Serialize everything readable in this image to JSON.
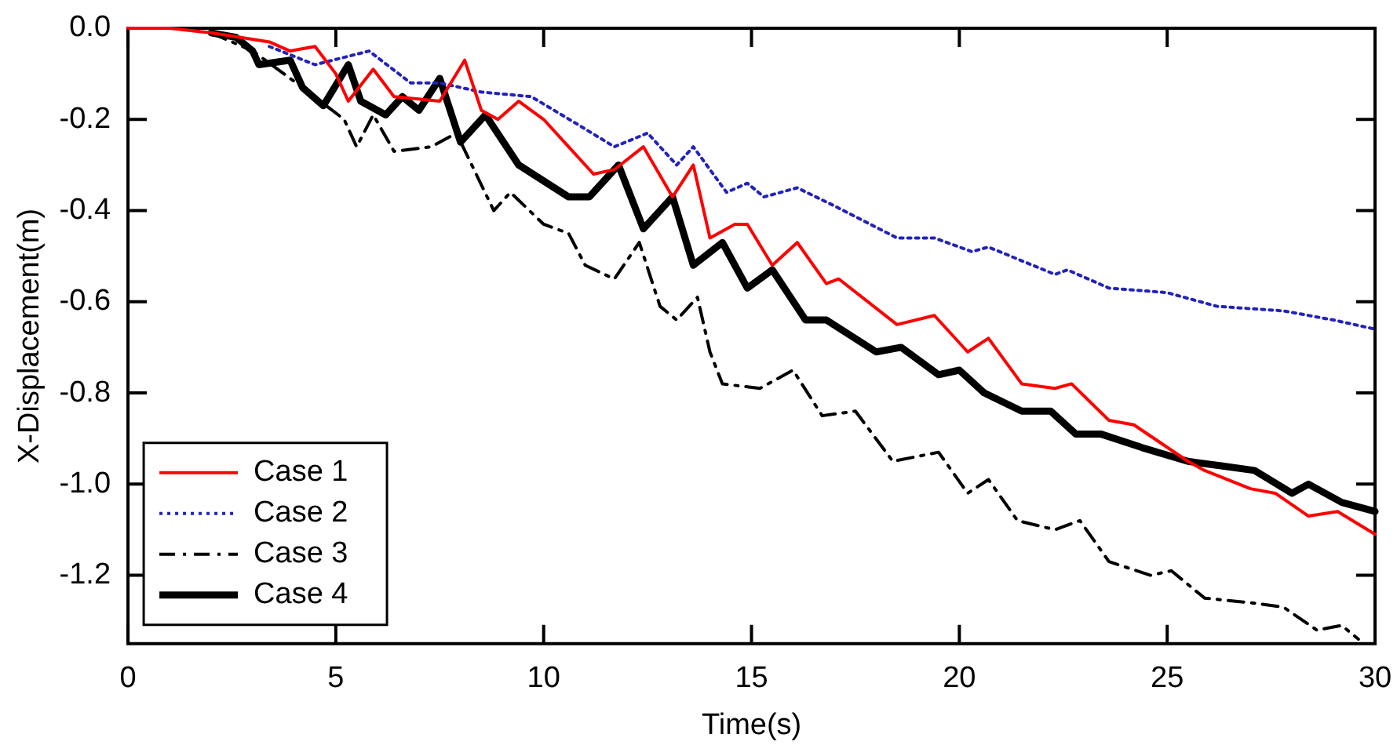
{
  "chart_data": {
    "type": "line",
    "xlabel": "Time(s)",
    "ylabel": "X-Displacement(m)",
    "xlim": [
      0,
      30
    ],
    "xticks": [
      0,
      5,
      10,
      15,
      20,
      25,
      30
    ],
    "ylim": [
      -1.35,
      0
    ],
    "yticks": [
      {
        "value": 0,
        "label": "0.0"
      },
      {
        "value": -0.2,
        "label": "-0.2"
      },
      {
        "value": -0.4,
        "label": "-0.4"
      },
      {
        "value": -0.6,
        "label": "-0.6"
      },
      {
        "value": -0.8,
        "label": "-0.8"
      },
      {
        "value": -1.0,
        "label": "-1.0"
      },
      {
        "value": -1.2,
        "label": "-1.2"
      }
    ],
    "grid": false,
    "legend": "bottom left",
    "marker": "none",
    "series": [
      {
        "name": "Case 1",
        "color": "#ff0000",
        "line_style": "solid",
        "x": [
          0,
          1,
          2,
          3.4,
          3.9,
          4.5,
          5.0,
          5.3,
          5.9,
          6.4,
          7.5,
          8.1,
          8.5,
          8.9,
          9.4,
          10.0,
          10.5,
          11.2,
          11.7,
          12.4,
          13.1,
          13.6,
          14.0,
          14.6,
          14.9,
          15.5,
          16.1,
          16.8,
          17.1,
          18.5,
          19.4,
          20.2,
          20.7,
          21.5,
          22.3,
          22.7,
          23.6,
          24.2,
          25.5,
          25.9,
          27.0,
          27.6,
          28.4,
          29.1,
          30
        ],
        "values": [
          0,
          0,
          -0.01,
          -0.03,
          -0.05,
          -0.04,
          -0.1,
          -0.16,
          -0.09,
          -0.15,
          -0.16,
          -0.07,
          -0.18,
          -0.2,
          -0.16,
          -0.2,
          -0.25,
          -0.32,
          -0.31,
          -0.26,
          -0.37,
          -0.3,
          -0.46,
          -0.43,
          -0.43,
          -0.52,
          -0.47,
          -0.56,
          -0.55,
          -0.65,
          -0.63,
          -0.71,
          -0.68,
          -0.78,
          -0.79,
          -0.78,
          -0.86,
          -0.87,
          -0.95,
          -0.97,
          -1.01,
          -1.02,
          -1.07,
          -1.06,
          -1.11
        ]
      },
      {
        "name": "Case 2",
        "color": "#2222bb",
        "line_style": "dotted",
        "x": [
          3.4,
          4.5,
          5.8,
          6.8,
          7.5,
          8.5,
          9.7,
          10.8,
          11.7,
          12.5,
          13.2,
          13.6,
          14.4,
          14.9,
          15.3,
          16.1,
          17.0,
          18.5,
          19.4,
          20.3,
          20.7,
          22.3,
          22.6,
          23.6,
          25.0,
          26.2,
          27.8,
          29.0,
          30
        ],
        "values": [
          -0.04,
          -0.08,
          -0.05,
          -0.12,
          -0.12,
          -0.14,
          -0.15,
          -0.21,
          -0.26,
          -0.23,
          -0.3,
          -0.26,
          -0.36,
          -0.34,
          -0.37,
          -0.35,
          -0.39,
          -0.46,
          -0.46,
          -0.49,
          -0.48,
          -0.54,
          -0.53,
          -0.57,
          -0.58,
          -0.61,
          -0.62,
          -0.64,
          -0.66
        ]
      },
      {
        "name": "Case 3",
        "color": "#000000",
        "line_style": "dashed",
        "x": [
          2,
          3.0,
          4.2,
          5.2,
          5.5,
          5.9,
          6.4,
          7.3,
          7.9,
          8.8,
          9.2,
          10.0,
          10.6,
          11.0,
          11.7,
          12.3,
          12.8,
          13.2,
          13.7,
          14.0,
          14.3,
          15.2,
          16.0,
          16.7,
          17.5,
          18.4,
          19.5,
          20.2,
          20.7,
          21.4,
          22.3,
          22.9,
          23.6,
          24.6,
          25.1,
          25.9,
          27.0,
          27.8,
          28.6,
          29.2,
          29.6
        ],
        "values": [
          -0.01,
          -0.05,
          -0.13,
          -0.2,
          -0.26,
          -0.19,
          -0.27,
          -0.26,
          -0.23,
          -0.4,
          -0.36,
          -0.43,
          -0.45,
          -0.52,
          -0.55,
          -0.47,
          -0.61,
          -0.64,
          -0.59,
          -0.71,
          -0.78,
          -0.79,
          -0.75,
          -0.85,
          -0.84,
          -0.95,
          -0.93,
          -1.02,
          -0.99,
          -1.08,
          -1.1,
          -1.08,
          -1.17,
          -1.2,
          -1.19,
          -1.25,
          -1.26,
          -1.27,
          -1.32,
          -1.31,
          -1.34
        ]
      },
      {
        "name": "Case 4",
        "color": "#000000",
        "line_style": "solid",
        "x": [
          2,
          2.6,
          3.0,
          3.15,
          3.9,
          4.2,
          4.7,
          5.3,
          5.6,
          6.2,
          6.6,
          7.0,
          7.5,
          8.0,
          8.6,
          9.4,
          10.6,
          11.1,
          11.8,
          12.4,
          13.1,
          13.6,
          14.3,
          14.9,
          15.5,
          16.3,
          16.8,
          18.0,
          18.6,
          19.5,
          20.0,
          20.6,
          21.5,
          22.2,
          22.8,
          23.4,
          24.4,
          25.5,
          26.3,
          27.1,
          28.0,
          28.4,
          29.2,
          30
        ],
        "values": [
          -0.01,
          -0.02,
          -0.05,
          -0.08,
          -0.07,
          -0.13,
          -0.17,
          -0.08,
          -0.16,
          -0.19,
          -0.15,
          -0.18,
          -0.11,
          -0.25,
          -0.19,
          -0.3,
          -0.37,
          -0.37,
          -0.3,
          -0.44,
          -0.37,
          -0.52,
          -0.47,
          -0.57,
          -0.53,
          -0.64,
          -0.64,
          -0.71,
          -0.7,
          -0.76,
          -0.75,
          -0.8,
          -0.84,
          -0.84,
          -0.89,
          -0.89,
          -0.92,
          -0.95,
          -0.96,
          -0.97,
          -1.02,
          -1.0,
          -1.04,
          -1.06
        ]
      }
    ]
  }
}
